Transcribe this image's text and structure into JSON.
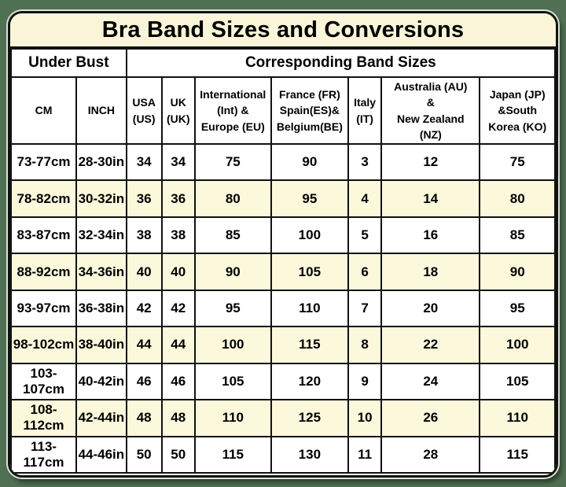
{
  "table": {
    "title": "Bra Band Sizes and Conversions",
    "group_headers": [
      {
        "label": "Under Bust",
        "span": 2
      },
      {
        "label": "Corresponding Band Sizes",
        "span": 7
      }
    ],
    "columns": [
      {
        "id": "cm",
        "label": "CM"
      },
      {
        "id": "inch",
        "label": "INCH"
      },
      {
        "id": "usa",
        "label": "USA\n(US)"
      },
      {
        "id": "uk",
        "label": "UK\n(UK)"
      },
      {
        "id": "int-eu",
        "label": "International\n(Int) &\nEurope (EU)"
      },
      {
        "id": "fr-es-be",
        "label": "France (FR)\nSpain(ES)&\nBelgium(BE)"
      },
      {
        "id": "it",
        "label": "Italy\n(IT)"
      },
      {
        "id": "au-nz",
        "label": "Australia (AU)\n&\nNew Zealand\n(NZ)"
      },
      {
        "id": "jp-ko",
        "label": "Japan (JP)\n&South\nKorea (KO)"
      }
    ],
    "colors": {
      "page_bg": "#4f7052",
      "card_bg": "#ffffff",
      "title_bg": "#faf5d8",
      "stripe_bg": "#fbf8dc",
      "border": "#111111",
      "text": "#000000"
    }
  },
  "chart_data": {
    "type": "table",
    "title": "Bra Band Sizes and Conversions",
    "column_groups": [
      "Under Bust",
      "Corresponding Band Sizes"
    ],
    "columns": [
      "CM",
      "INCH",
      "USA (US)",
      "UK (UK)",
      "International (Int) & Europe (EU)",
      "France (FR) Spain(ES)& Belgium(BE)",
      "Italy (IT)",
      "Australia (AU) & New Zealand (NZ)",
      "Japan (JP) &South Korea (KO)"
    ],
    "rows": [
      [
        "73-77cm",
        "28-30in",
        "34",
        "34",
        "75",
        "90",
        "3",
        "12",
        "75"
      ],
      [
        "78-82cm",
        "30-32in",
        "36",
        "36",
        "80",
        "95",
        "4",
        "14",
        "80"
      ],
      [
        "83-87cm",
        "32-34in",
        "38",
        "38",
        "85",
        "100",
        "5",
        "16",
        "85"
      ],
      [
        "88-92cm",
        "34-36in",
        "40",
        "40",
        "90",
        "105",
        "6",
        "18",
        "90"
      ],
      [
        "93-97cm",
        "36-38in",
        "42",
        "42",
        "95",
        "110",
        "7",
        "20",
        "95"
      ],
      [
        "98-102cm",
        "38-40in",
        "44",
        "44",
        "100",
        "115",
        "8",
        "22",
        "100"
      ],
      [
        "103-107cm",
        "40-42in",
        "46",
        "46",
        "105",
        "120",
        "9",
        "24",
        "105"
      ],
      [
        "108-112cm",
        "42-44in",
        "48",
        "48",
        "110",
        "125",
        "10",
        "26",
        "110"
      ],
      [
        "113-117cm",
        "44-46in",
        "50",
        "50",
        "115",
        "130",
        "11",
        "28",
        "115"
      ]
    ],
    "layout": {
      "striped_rows": "even rows cream (#fbf8dc), odd rows white",
      "grid": true,
      "corner_radius": true
    }
  }
}
